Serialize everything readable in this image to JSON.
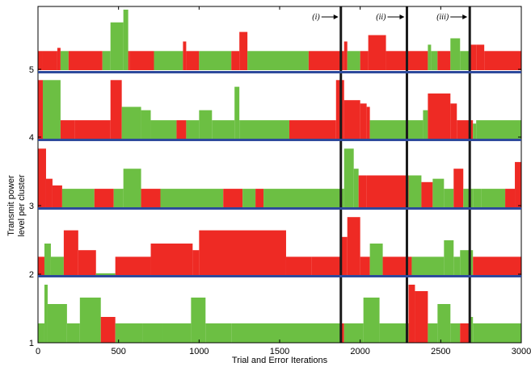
{
  "chart_data": {
    "type": "area",
    "xlabel": "Trial and Error Iterations",
    "ylabel_lines": [
      "Transmit power",
      "level per cluster"
    ],
    "xlim": [
      0,
      3000
    ],
    "xticks": [
      0,
      500,
      1000,
      1500,
      2000,
      2500,
      3000
    ],
    "ytick_labels": [
      "1",
      "2",
      "3",
      "4",
      "5"
    ],
    "grid": false,
    "legend": "none",
    "colors": {
      "red": "#ee2a24",
      "green": "#6cbf43",
      "divider": "#2e4a9c",
      "vline": "#1a1a1a"
    },
    "panels": [
      {
        "name": "cluster 5",
        "level_range": [
          5,
          6
        ],
        "segments": [
          [
            0,
            30,
            "r",
            0.3
          ],
          [
            30,
            120,
            "r",
            0.3
          ],
          [
            120,
            140,
            "r",
            0.35
          ],
          [
            140,
            190,
            "g",
            0.3
          ],
          [
            190,
            400,
            "r",
            0.3
          ],
          [
            400,
            450,
            "g",
            0.3
          ],
          [
            450,
            530,
            "g",
            0.75
          ],
          [
            530,
            560,
            "g",
            0.95
          ],
          [
            560,
            570,
            "r",
            0.3
          ],
          [
            570,
            720,
            "r",
            0.3
          ],
          [
            720,
            900,
            "g",
            0.3
          ],
          [
            900,
            920,
            "r",
            0.45
          ],
          [
            920,
            1000,
            "r",
            0.3
          ],
          [
            1000,
            1200,
            "g",
            0.3
          ],
          [
            1200,
            1250,
            "r",
            0.3
          ],
          [
            1250,
            1300,
            "r",
            0.6
          ],
          [
            1300,
            1680,
            "g",
            0.3
          ],
          [
            1680,
            1900,
            "r",
            0.3
          ],
          [
            1900,
            1920,
            "r",
            0.45
          ],
          [
            1920,
            2000,
            "g",
            0.3
          ],
          [
            2000,
            2050,
            "r",
            0.3
          ],
          [
            2050,
            2160,
            "r",
            0.55
          ],
          [
            2160,
            2420,
            "r",
            0.3
          ],
          [
            2420,
            2440,
            "g",
            0.4
          ],
          [
            2440,
            2480,
            "g",
            0.3
          ],
          [
            2480,
            2560,
            "r",
            0.3
          ],
          [
            2560,
            2620,
            "g",
            0.5
          ],
          [
            2620,
            2680,
            "g",
            0.3
          ],
          [
            2680,
            2720,
            "r",
            0.4
          ],
          [
            2720,
            2770,
            "r",
            0.4
          ],
          [
            2770,
            3000,
            "r",
            0.3
          ]
        ]
      },
      {
        "name": "cluster 4",
        "level_range": [
          4,
          5
        ],
        "segments": [
          [
            0,
            30,
            "r",
            0.9
          ],
          [
            30,
            140,
            "g",
            0.9
          ],
          [
            140,
            230,
            "r",
            0.3
          ],
          [
            230,
            450,
            "r",
            0.3
          ],
          [
            450,
            520,
            "r",
            0.9
          ],
          [
            520,
            640,
            "g",
            0.5
          ],
          [
            640,
            700,
            "g",
            0.45
          ],
          [
            700,
            860,
            "g",
            0.3
          ],
          [
            860,
            920,
            "r",
            0.3
          ],
          [
            920,
            1000,
            "g",
            0.3
          ],
          [
            1000,
            1080,
            "g",
            0.45
          ],
          [
            1080,
            1220,
            "g",
            0.3
          ],
          [
            1220,
            1250,
            "g",
            0.8
          ],
          [
            1250,
            1560,
            "g",
            0.3
          ],
          [
            1560,
            1850,
            "r",
            0.3
          ],
          [
            1850,
            1900,
            "r",
            0.9
          ],
          [
            1900,
            2000,
            "r",
            0.6
          ],
          [
            2000,
            2040,
            "r",
            0.55
          ],
          [
            2040,
            2060,
            "r",
            0.5
          ],
          [
            2060,
            2390,
            "g",
            0.3
          ],
          [
            2390,
            2420,
            "g",
            0.45
          ],
          [
            2420,
            2560,
            "r",
            0.7
          ],
          [
            2560,
            2600,
            "r",
            0.55
          ],
          [
            2600,
            2700,
            "r",
            0.3
          ],
          [
            2700,
            2720,
            "g",
            0.25
          ],
          [
            2720,
            3000,
            "g",
            0.3
          ]
        ]
      },
      {
        "name": "cluster 3",
        "level_range": [
          3,
          4
        ],
        "segments": [
          [
            0,
            50,
            "r",
            0.9
          ],
          [
            50,
            90,
            "r",
            0.45
          ],
          [
            90,
            150,
            "r",
            0.35
          ],
          [
            150,
            350,
            "g",
            0.3
          ],
          [
            350,
            470,
            "r",
            0.3
          ],
          [
            470,
            530,
            "g",
            0.3
          ],
          [
            530,
            640,
            "g",
            0.6
          ],
          [
            640,
            760,
            "r",
            0.3
          ],
          [
            760,
            1150,
            "g",
            0.3
          ],
          [
            1150,
            1270,
            "r",
            0.3
          ],
          [
            1270,
            1350,
            "g",
            0.3
          ],
          [
            1350,
            1400,
            "r",
            0.3
          ],
          [
            1400,
            1880,
            "g",
            0.3
          ],
          [
            1880,
            1900,
            "g",
            0.3
          ],
          [
            1900,
            1960,
            "g",
            0.9
          ],
          [
            1960,
            1990,
            "g",
            0.6
          ],
          [
            1990,
            2040,
            "r",
            0.5
          ],
          [
            2040,
            2300,
            "r",
            0.5
          ],
          [
            2300,
            2380,
            "g",
            0.5
          ],
          [
            2380,
            2450,
            "r",
            0.4
          ],
          [
            2450,
            2520,
            "g",
            0.45
          ],
          [
            2520,
            2580,
            "g",
            0.3
          ],
          [
            2580,
            2640,
            "r",
            0.6
          ],
          [
            2640,
            2700,
            "g",
            0.3
          ],
          [
            2700,
            2750,
            "g",
            0.3
          ],
          [
            2750,
            2900,
            "g",
            0.3
          ],
          [
            2900,
            2960,
            "r",
            0.3
          ],
          [
            2960,
            3000,
            "r",
            0.7
          ]
        ]
      },
      {
        "name": "cluster 2",
        "level_range": [
          2,
          3
        ],
        "segments": [
          [
            0,
            40,
            "r",
            0.3
          ],
          [
            40,
            80,
            "g",
            0.5
          ],
          [
            80,
            160,
            "g",
            0.3
          ],
          [
            160,
            250,
            "r",
            0.7
          ],
          [
            250,
            360,
            "r",
            0.4
          ],
          [
            360,
            480,
            "g",
            0.05
          ],
          [
            480,
            700,
            "r",
            0.3
          ],
          [
            700,
            960,
            "r",
            0.5
          ],
          [
            960,
            1000,
            "r",
            0.4
          ],
          [
            1000,
            1540,
            "r",
            0.7
          ],
          [
            1540,
            1700,
            "r",
            0.3
          ],
          [
            1700,
            1880,
            "r",
            0.3
          ],
          [
            1880,
            1920,
            "r",
            0.6
          ],
          [
            1920,
            2000,
            "r",
            0.9
          ],
          [
            2000,
            2060,
            "r",
            0.3
          ],
          [
            2060,
            2140,
            "g",
            0.5
          ],
          [
            2140,
            2280,
            "r",
            0.3
          ],
          [
            2280,
            2320,
            "r",
            0.3
          ],
          [
            2320,
            2520,
            "g",
            0.3
          ],
          [
            2520,
            2580,
            "g",
            0.55
          ],
          [
            2580,
            2620,
            "g",
            0.3
          ],
          [
            2620,
            2700,
            "g",
            0.4
          ],
          [
            2700,
            3000,
            "r",
            0.3
          ]
        ]
      },
      {
        "name": "cluster 1",
        "level_range": [
          1,
          2
        ],
        "segments": [
          [
            0,
            40,
            "g",
            0.3
          ],
          [
            40,
            60,
            "g",
            0.9
          ],
          [
            60,
            180,
            "g",
            0.6
          ],
          [
            180,
            260,
            "g",
            0.3
          ],
          [
            260,
            390,
            "g",
            0.7
          ],
          [
            390,
            480,
            "r",
            0.4
          ],
          [
            480,
            650,
            "g",
            0.3
          ],
          [
            650,
            770,
            "g",
            0.3
          ],
          [
            770,
            950,
            "g",
            0.3
          ],
          [
            950,
            1040,
            "g",
            0.7
          ],
          [
            1040,
            1200,
            "g",
            0.3
          ],
          [
            1200,
            1880,
            "g",
            0.3
          ],
          [
            1880,
            1900,
            "r",
            0.3
          ],
          [
            1900,
            2020,
            "g",
            0.3
          ],
          [
            2020,
            2120,
            "g",
            0.7
          ],
          [
            2120,
            2300,
            "g",
            0.3
          ],
          [
            2300,
            2340,
            "r",
            0.9
          ],
          [
            2340,
            2420,
            "r",
            0.8
          ],
          [
            2420,
            2480,
            "g",
            0.3
          ],
          [
            2480,
            2560,
            "g",
            0.6
          ],
          [
            2560,
            2620,
            "g",
            0.3
          ],
          [
            2620,
            2680,
            "r",
            0.3
          ],
          [
            2680,
            2700,
            "g",
            0.4
          ],
          [
            2700,
            3000,
            "g",
            0.3
          ]
        ]
      }
    ],
    "vlines": [
      1880,
      2290,
      2680
    ],
    "annotations": [
      {
        "label": "(i)",
        "x": 1880
      },
      {
        "label": "(ii)",
        "x": 2290
      },
      {
        "label": "(iii)",
        "x": 2680
      }
    ]
  }
}
